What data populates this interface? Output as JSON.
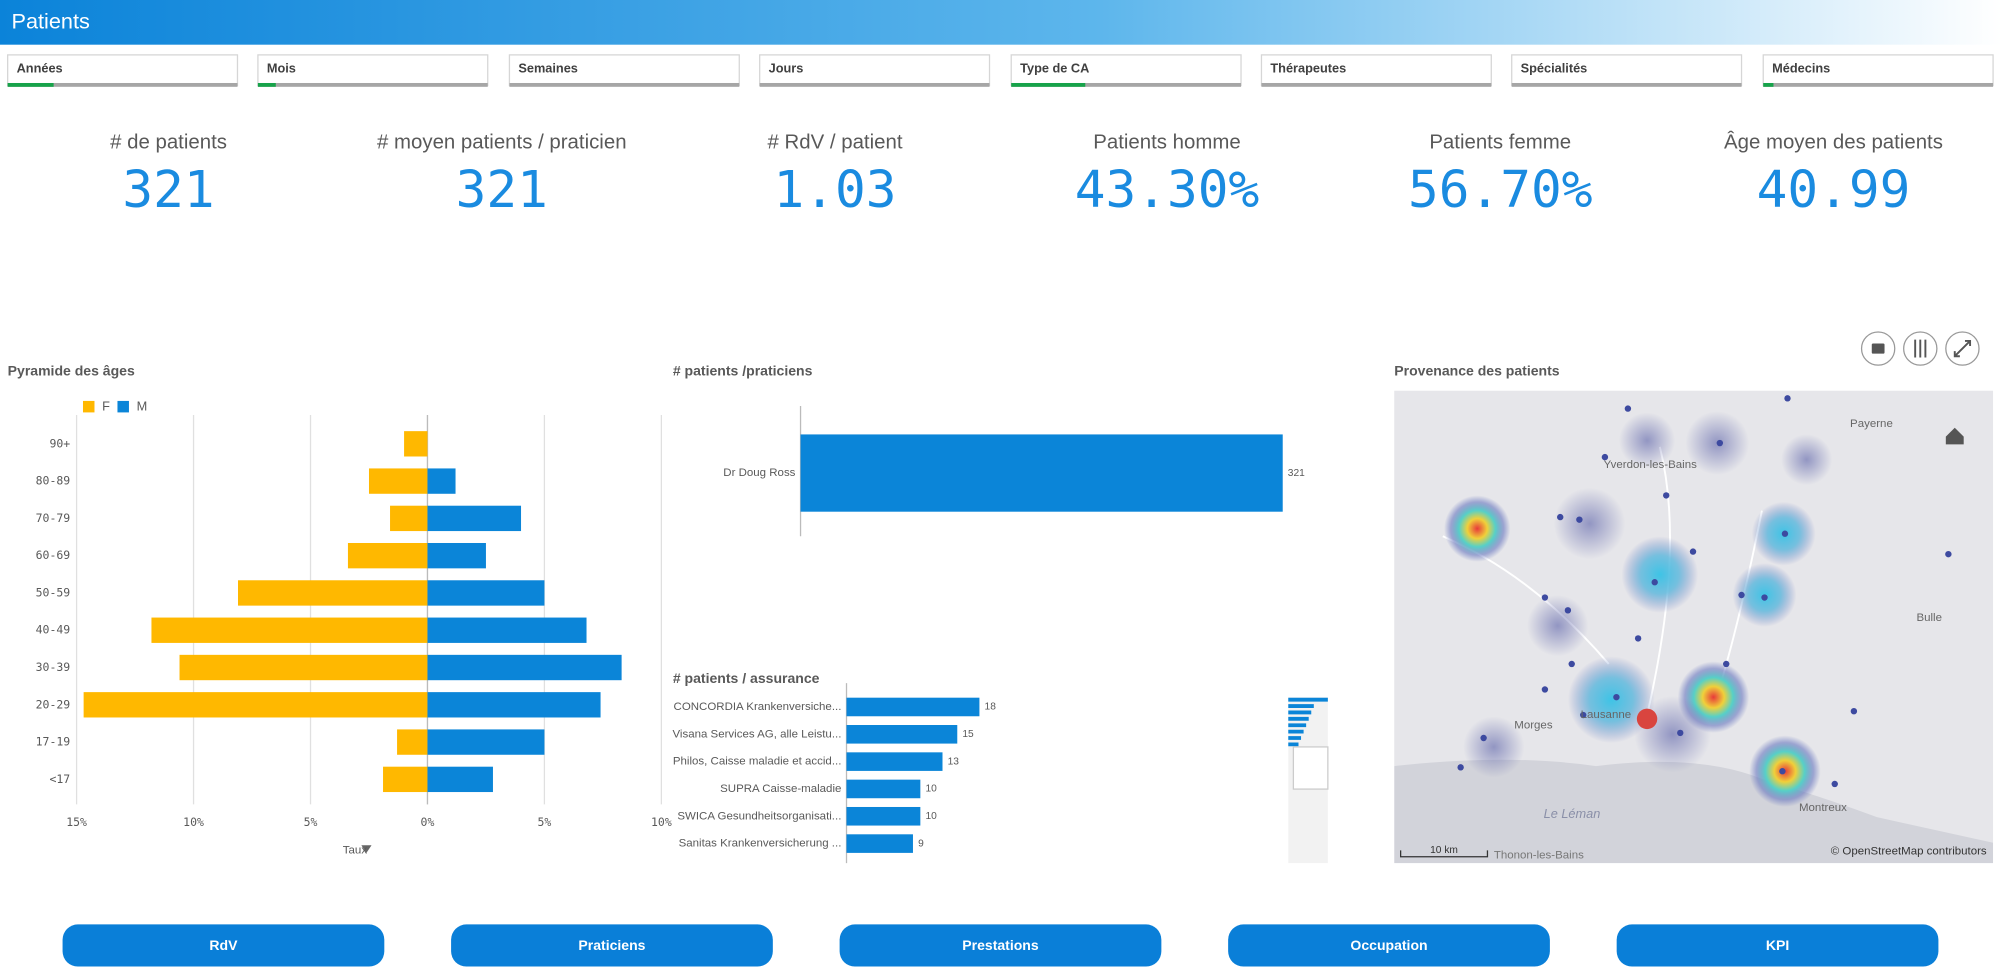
{
  "header": {
    "title": "Patients"
  },
  "filters": [
    "Années",
    "Mois",
    "Semaines",
    "Jours",
    "Type de CA",
    "Thérapeutes",
    "Spécialités",
    "Médecins"
  ],
  "kpis": [
    {
      "label": "# de patients",
      "value": "321"
    },
    {
      "label": "# moyen patients / praticien",
      "value": "321"
    },
    {
      "label": "# RdV / patient",
      "value": "1.03"
    },
    {
      "label": "Patients homme",
      "value": "43.30%"
    },
    {
      "label": "Patients femme",
      "value": "56.70%"
    },
    {
      "label": "Âge moyen des patients",
      "value": "40.99"
    }
  ],
  "chart_data": [
    {
      "type": "bar",
      "orientation": "horizontal",
      "title": "Pyramide des âges",
      "x_label": "Taux",
      "categories": [
        "90+",
        "80-89",
        "70-79",
        "60-69",
        "50-59",
        "40-49",
        "30-39",
        "20-29",
        "17-19",
        "<17"
      ],
      "series": [
        {
          "name": "F",
          "color": "#ffb800",
          "values": [
            -1.0,
            -2.5,
            -1.6,
            -3.4,
            -8.1,
            -11.8,
            -10.6,
            -14.7,
            -1.3,
            -1.9
          ]
        },
        {
          "name": "M",
          "color": "#0b85d8",
          "values": [
            0,
            1.2,
            4.0,
            2.5,
            5.0,
            6.8,
            8.3,
            7.4,
            5.0,
            2.8
          ]
        }
      ],
      "xlim": [
        -15,
        10
      ],
      "xticks": [
        {
          "value": -15,
          "label": "15%"
        },
        {
          "value": -10,
          "label": "10%"
        },
        {
          "value": -5,
          "label": "5%"
        },
        {
          "value": 0,
          "label": "0%"
        },
        {
          "value": 5,
          "label": "5%"
        },
        {
          "value": 10,
          "label": "10%"
        }
      ],
      "grid": true
    },
    {
      "type": "bar",
      "orientation": "horizontal",
      "title": "# patients /praticiens",
      "categories": [
        "Dr Doug Ross"
      ],
      "values": [
        321
      ],
      "color": "#0b85d8",
      "xlim": [
        0,
        340
      ]
    },
    {
      "type": "bar",
      "orientation": "horizontal",
      "title": "# patients / assurance",
      "categories": [
        "CONCORDIA Krankenversiche...",
        "Visana Services AG, alle Leistu...",
        "Philos, Caisse maladie et accid...",
        "SUPRA Caisse-maladie",
        "SWICA Gesundheitsorganisati...",
        "Sanitas Krankenversicherung ..."
      ],
      "values": [
        18,
        15,
        13,
        10,
        10,
        9
      ],
      "color": "#0b85d8",
      "xlim": [
        0,
        60
      ]
    }
  ],
  "map": {
    "title": "Provenance des patients",
    "places": [
      "Payerne",
      "Yverdon-les-Bains",
      "Bulle",
      "Morges",
      "Lausanne",
      "Montreux",
      "Le Léman",
      "Thonon-les-Bains"
    ],
    "scale": "10 km",
    "attribution": "© OpenStreetMap contributors"
  },
  "buttons": [
    "RdV",
    "Praticiens",
    "Prestations",
    "Occupation",
    "KPI"
  ]
}
